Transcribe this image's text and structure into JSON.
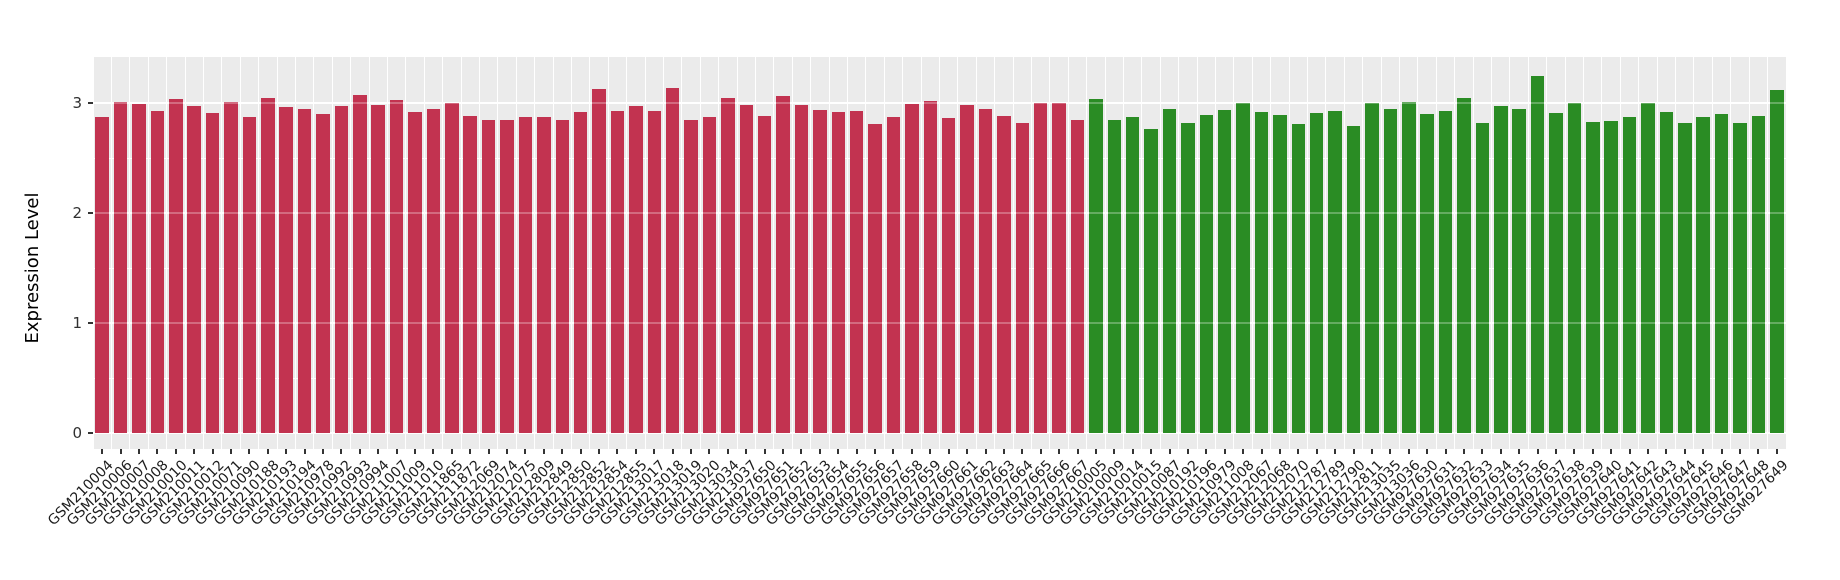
{
  "figure": {
    "y_axis_title": "Expression Level",
    "y_tick_labels": [
      "0",
      "1",
      "2",
      "3"
    ]
  },
  "chart_data": {
    "type": "bar",
    "title": "",
    "xlabel": "",
    "ylabel": "Expression Level",
    "ylim": [
      0,
      3.4
    ],
    "yticks": [
      0,
      1,
      2,
      3
    ],
    "minor_gridlines": [
      0.5,
      1.5,
      2.5
    ],
    "grid": "on",
    "legend": "none",
    "panel_background": "#EBEBEB",
    "grid_color": "#FFFFFF",
    "tick_color": "#333333",
    "x_tick_label_rotation_deg": -45,
    "series": [
      {
        "name": "group-red",
        "color": "#C23350",
        "categories": [
          "GSM210004",
          "GSM210006",
          "GSM210007",
          "GSM210008",
          "GSM210010",
          "GSM210011",
          "GSM210012",
          "GSM210071",
          "GSM210090",
          "GSM210188",
          "GSM210193",
          "GSM210194",
          "GSM210978",
          "GSM210992",
          "GSM210993",
          "GSM210994",
          "GSM211007",
          "GSM211009",
          "GSM211010",
          "GSM211865",
          "GSM211872",
          "GSM212069",
          "GSM212074",
          "GSM212075",
          "GSM212809",
          "GSM212849",
          "GSM212850",
          "GSM212852",
          "GSM212854",
          "GSM212855",
          "GSM213017",
          "GSM213018",
          "GSM213019",
          "GSM213020",
          "GSM213034",
          "GSM213037",
          "GSM927650",
          "GSM927651",
          "GSM927652",
          "GSM927653",
          "GSM927654",
          "GSM927655",
          "GSM927656",
          "GSM927657",
          "GSM927658",
          "GSM927659",
          "GSM927660",
          "GSM927661",
          "GSM927662",
          "GSM927663",
          "GSM927664",
          "GSM927665",
          "GSM927666",
          "GSM927667"
        ],
        "values": [
          2.87,
          3.01,
          2.99,
          2.93,
          3.04,
          2.97,
          2.91,
          3.01,
          2.87,
          3.05,
          2.96,
          2.95,
          2.9,
          2.97,
          3.07,
          2.98,
          3.03,
          2.92,
          2.95,
          3.0,
          2.88,
          2.85,
          2.85,
          2.87,
          2.87,
          2.85,
          2.92,
          3.13,
          2.93,
          2.97,
          2.93,
          3.14,
          2.85,
          2.87,
          3.05,
          2.98,
          2.88,
          3.06,
          2.98,
          2.94,
          2.92,
          2.93,
          2.81,
          2.87,
          2.99,
          3.02,
          2.86,
          2.98,
          2.95,
          2.88,
          2.82,
          3.0,
          3.0,
          2.85
        ]
      },
      {
        "name": "group-green",
        "color": "#2A8C24",
        "categories": [
          "GSM210005",
          "GSM210009",
          "GSM210014",
          "GSM210015",
          "GSM210087",
          "GSM210192",
          "GSM210196",
          "GSM210979",
          "GSM211008",
          "GSM212067",
          "GSM212068",
          "GSM212070",
          "GSM212787",
          "GSM212789",
          "GSM212790",
          "GSM212811",
          "GSM213035",
          "GSM213036",
          "GSM927630",
          "GSM927631",
          "GSM927632",
          "GSM927633",
          "GSM927634",
          "GSM927635",
          "GSM927636",
          "GSM927637",
          "GSM927638",
          "GSM927639",
          "GSM927640",
          "GSM927641",
          "GSM927642",
          "GSM927643",
          "GSM927644",
          "GSM927645",
          "GSM927646",
          "GSM927647",
          "GSM927648",
          "GSM927649"
        ],
        "values": [
          3.04,
          2.85,
          2.87,
          2.76,
          2.95,
          2.82,
          2.89,
          2.94,
          3.0,
          2.92,
          2.89,
          2.81,
          2.91,
          2.93,
          2.79,
          3.0,
          2.95,
          3.01,
          2.9,
          2.93,
          3.05,
          2.82,
          2.97,
          2.95,
          3.25,
          2.91,
          3.0,
          2.83,
          2.84,
          2.87,
          3.0,
          2.92,
          2.82,
          2.87,
          2.9,
          2.82,
          2.88,
          3.12
        ]
      }
    ]
  }
}
